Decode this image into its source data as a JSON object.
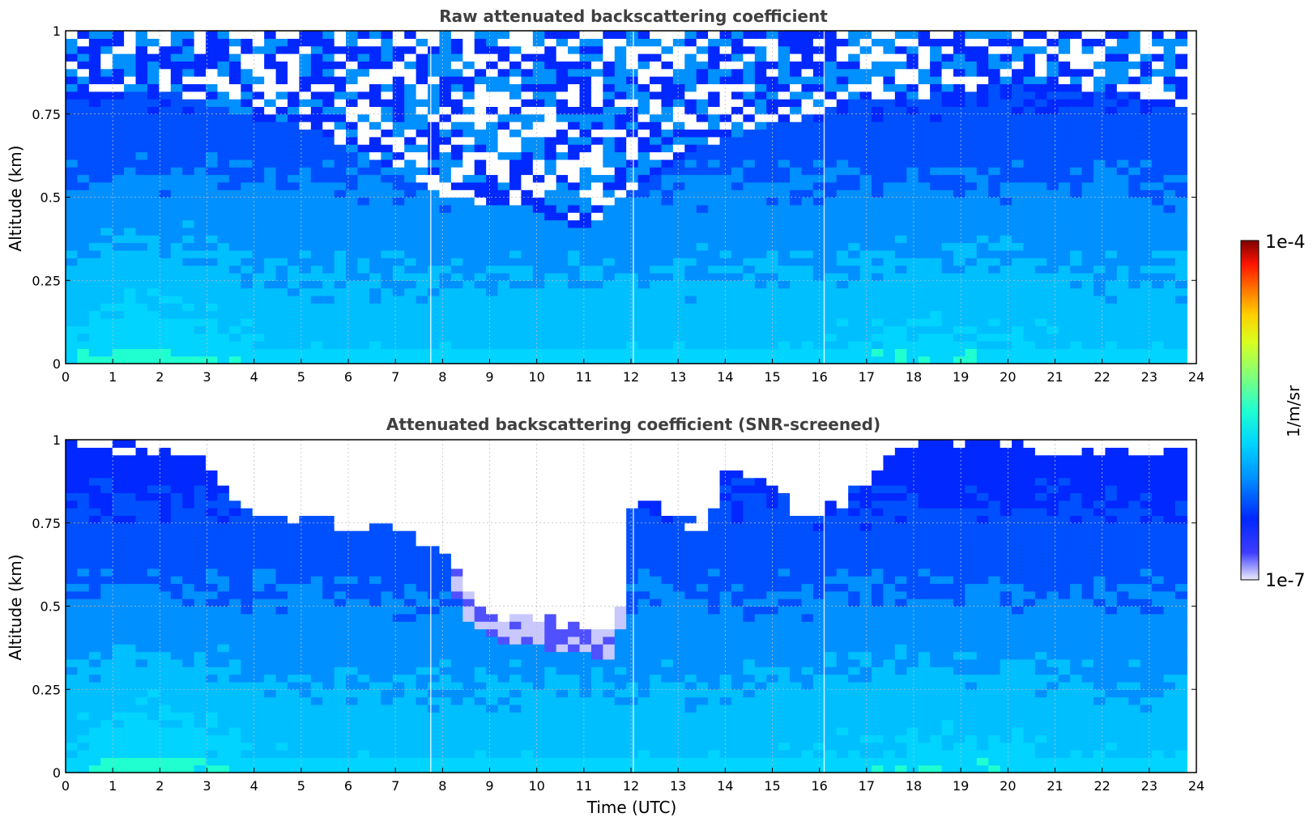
{
  "chart_data": [
    {
      "type": "heatmap",
      "title": "Raw attenuated backscattering coefficient",
      "xlabel": "",
      "ylabel": "Altitude (km)",
      "xlim": [
        0,
        24
      ],
      "ylim": [
        0,
        1
      ],
      "x_ticks": [
        "0",
        "1",
        "2",
        "3",
        "4",
        "5",
        "6",
        "7",
        "8",
        "9",
        "10",
        "11",
        "12",
        "13",
        "14",
        "15",
        "16",
        "17",
        "18",
        "19",
        "20",
        "21",
        "22",
        "23",
        "24"
      ],
      "y_ticks": [
        "0",
        "0.25",
        "0.5",
        "0.75",
        "1"
      ],
      "grid": true,
      "data_end_time": 23.8,
      "noise_free_top_profile": [
        [
          0,
          0.8
        ],
        [
          1,
          0.82
        ],
        [
          2,
          0.83
        ],
        [
          3,
          0.78
        ],
        [
          4,
          0.74
        ],
        [
          5,
          0.72
        ],
        [
          6,
          0.64
        ],
        [
          7,
          0.58
        ],
        [
          8,
          0.5
        ],
        [
          9,
          0.48
        ],
        [
          10,
          0.45
        ],
        [
          11,
          0.4
        ],
        [
          12,
          0.52
        ],
        [
          13,
          0.62
        ],
        [
          14,
          0.68
        ],
        [
          15,
          0.72
        ],
        [
          16,
          0.75
        ],
        [
          17,
          0.8
        ],
        [
          18,
          0.8
        ],
        [
          19,
          0.82
        ],
        [
          20,
          0.84
        ],
        [
          21,
          0.84
        ],
        [
          22,
          0.82
        ],
        [
          23,
          0.8
        ],
        [
          23.8,
          0.78
        ]
      ],
      "column_artifacts_x": [
        7.75,
        12.05,
        16.1
      ]
    },
    {
      "type": "heatmap",
      "title": "Attenuated backscattering coefficient (SNR-screened)",
      "xlabel": "Time (UTC)",
      "ylabel": "Altitude (km)",
      "xlim": [
        0,
        24
      ],
      "ylim": [
        0,
        1
      ],
      "x_ticks": [
        "0",
        "1",
        "2",
        "3",
        "4",
        "5",
        "6",
        "7",
        "8",
        "9",
        "10",
        "11",
        "12",
        "13",
        "14",
        "15",
        "16",
        "17",
        "18",
        "19",
        "20",
        "21",
        "22",
        "23",
        "24"
      ],
      "y_ticks": [
        "0",
        "0.25",
        "0.5",
        "0.75",
        "1"
      ],
      "grid": true,
      "data_end_time": 23.8,
      "screened_region_bottom": [
        [
          0,
          1.0
        ],
        [
          1,
          0.98
        ],
        [
          2,
          0.97
        ],
        [
          3,
          0.95
        ],
        [
          3.3,
          0.86
        ],
        [
          4,
          0.76
        ],
        [
          5,
          0.78
        ],
        [
          6,
          0.74
        ],
        [
          7,
          0.73
        ],
        [
          8,
          0.68
        ],
        [
          8.5,
          0.54
        ],
        [
          9,
          0.48
        ],
        [
          10,
          0.46
        ],
        [
          11,
          0.44
        ],
        [
          11.7,
          0.42
        ],
        [
          12.05,
          0.8
        ],
        [
          12.5,
          0.82
        ],
        [
          13,
          0.75
        ],
        [
          13.6,
          0.74
        ],
        [
          14,
          0.92
        ],
        [
          15,
          0.86
        ],
        [
          15.7,
          0.76
        ],
        [
          16.3,
          0.8
        ],
        [
          17,
          0.86
        ],
        [
          17.5,
          0.96
        ],
        [
          18,
          0.98
        ],
        [
          19,
          1.0
        ],
        [
          20,
          0.98
        ],
        [
          21,
          0.96
        ],
        [
          22,
          0.97
        ],
        [
          23,
          0.96
        ],
        [
          23.8,
          0.98
        ]
      ],
      "column_artifacts_x": [
        7.75,
        12.05,
        16.1
      ]
    }
  ],
  "colorbar": {
    "label": "1/m/sr",
    "max_label": "1e-4",
    "min_label": "1e-7",
    "scale": "log",
    "range": [
      1e-07,
      0.0001
    ],
    "colormap": "jet"
  },
  "colors": {
    "title": "#404040",
    "axis": "#000000",
    "grid": "#c0c0c0",
    "low": "#0000ff",
    "mid": "#00bfff",
    "high": "#7f0000"
  }
}
